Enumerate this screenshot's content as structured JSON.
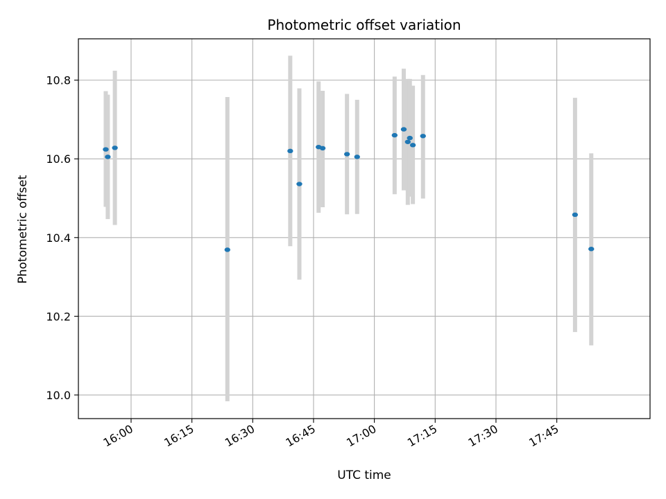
{
  "chart_data": {
    "type": "scatter",
    "title": "Photometric offset variation",
    "xlabel": "UTC time",
    "ylabel": "Photometric offset",
    "x_is_time": true,
    "x_ticks": [
      "16:00",
      "16:15",
      "16:30",
      "16:45",
      "17:00",
      "17:15",
      "17:30",
      "17:45"
    ],
    "x_tick_rotation_deg": 30,
    "xlim": [
      "15:47",
      "18:08"
    ],
    "y_ticks": [
      10.0,
      10.2,
      10.4,
      10.6,
      10.8
    ],
    "ylim": [
      9.94,
      10.905
    ],
    "grid": true,
    "point_color": "#1f77b4",
    "errorbar_color": "#d3d3d3",
    "points": [
      {
        "time": "15:53:45",
        "y": 10.624,
        "ylow": 10.478,
        "yhigh": 10.772
      },
      {
        "time": "15:54:15",
        "y": 10.605,
        "ylow": 10.447,
        "yhigh": 10.763
      },
      {
        "time": "15:56:00",
        "y": 10.628,
        "ylow": 10.432,
        "yhigh": 10.824
      },
      {
        "time": "16:23:45",
        "y": 10.369,
        "ylow": 9.984,
        "yhigh": 10.757
      },
      {
        "time": "16:39:15",
        "y": 10.62,
        "ylow": 10.378,
        "yhigh": 10.862
      },
      {
        "time": "16:41:30",
        "y": 10.536,
        "ylow": 10.293,
        "yhigh": 10.779
      },
      {
        "time": "16:46:15",
        "y": 10.63,
        "ylow": 10.463,
        "yhigh": 10.797
      },
      {
        "time": "16:47:15",
        "y": 10.627,
        "ylow": 10.477,
        "yhigh": 10.773
      },
      {
        "time": "16:53:15",
        "y": 10.612,
        "ylow": 10.459,
        "yhigh": 10.765
      },
      {
        "time": "16:55:45",
        "y": 10.605,
        "ylow": 10.46,
        "yhigh": 10.75
      },
      {
        "time": "17:05:00",
        "y": 10.66,
        "ylow": 10.51,
        "yhigh": 10.809
      },
      {
        "time": "17:07:15",
        "y": 10.675,
        "ylow": 10.52,
        "yhigh": 10.829
      },
      {
        "time": "17:08:15",
        "y": 10.643,
        "ylow": 10.483,
        "yhigh": 10.803
      },
      {
        "time": "17:08:45",
        "y": 10.653,
        "ylow": 10.504,
        "yhigh": 10.803
      },
      {
        "time": "17:09:30",
        "y": 10.635,
        "ylow": 10.485,
        "yhigh": 10.786
      },
      {
        "time": "17:12:00",
        "y": 10.658,
        "ylow": 10.499,
        "yhigh": 10.813
      },
      {
        "time": "17:49:30",
        "y": 10.458,
        "ylow": 10.16,
        "yhigh": 10.755
      },
      {
        "time": "17:53:30",
        "y": 10.371,
        "ylow": 10.126,
        "yhigh": 10.614
      }
    ]
  }
}
